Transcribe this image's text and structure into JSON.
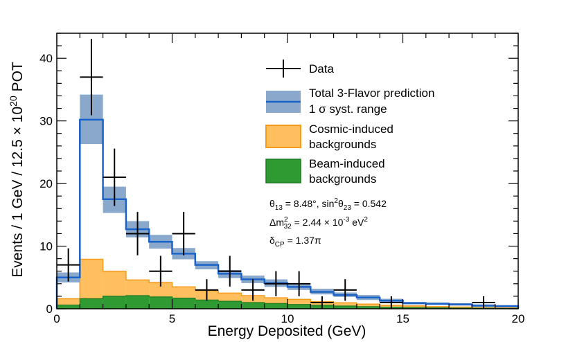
{
  "chart_data": {
    "type": "histogram",
    "title": "",
    "xlabel": "Energy Deposited (GeV)",
    "ylabel": {
      "pre": "Events / 1 GeV / 12.5 × 10",
      "sup": "20",
      "post": " POT"
    },
    "xlim": [
      0,
      20
    ],
    "ylim": [
      0,
      44
    ],
    "x_ticks": [
      0,
      5,
      10,
      15,
      20
    ],
    "y_ticks": [
      0,
      10,
      20,
      30,
      40
    ],
    "bin_edges": [
      0,
      1,
      2,
      3,
      4,
      5,
      6,
      7,
      8,
      9,
      10,
      11,
      12,
      13,
      14,
      15,
      16,
      17,
      18,
      19,
      20
    ],
    "series": [
      {
        "name": "Total 3-Flavor prediction",
        "values": [
          5.0,
          30.2,
          17.5,
          12.7,
          10.7,
          8.8,
          7.0,
          5.6,
          4.7,
          4.1,
          3.5,
          2.7,
          2.2,
          1.8,
          1.3,
          0.9,
          0.8,
          0.7,
          0.5,
          0.4
        ],
        "err_low": [
          4.2,
          26.3,
          15.3,
          11.4,
          9.6,
          7.9,
          6.3,
          4.9,
          4.1,
          3.5,
          3.0,
          2.3,
          1.9,
          1.4,
          1.0,
          0.7,
          0.6,
          0.5,
          0.3,
          0.2
        ],
        "err_high": [
          5.8,
          34.2,
          19.5,
          14.0,
          11.8,
          9.7,
          7.6,
          6.2,
          5.3,
          4.7,
          4.0,
          3.2,
          2.6,
          2.2,
          1.6,
          1.1,
          1.0,
          0.9,
          0.7,
          0.6
        ]
      },
      {
        "name": "Cosmic-induced backgrounds",
        "values": [
          1.0,
          6.3,
          4.0,
          2.5,
          2.3,
          1.8,
          1.5,
          1.3,
          1.1,
          0.9,
          0.8,
          0.6,
          0.5,
          0.4,
          0.3,
          0.25,
          0.2,
          0.15,
          0.1,
          0.1
        ]
      },
      {
        "name": "Beam-induced backgrounds",
        "values": [
          0.6,
          1.6,
          2.0,
          2.1,
          1.9,
          1.7,
          1.4,
          1.2,
          1.0,
          0.85,
          0.7,
          0.55,
          0.45,
          0.35,
          0.25,
          0.2,
          0.15,
          0.12,
          0.08,
          0.05
        ]
      }
    ],
    "data_points": {
      "name": "Data",
      "x": [
        0.5,
        1.5,
        2.5,
        3.5,
        4.5,
        5.5,
        6.5,
        7.5,
        8.5,
        9.5,
        10.5,
        11.5,
        12.5,
        14.5,
        18.5
      ],
      "y": [
        7,
        37,
        21,
        12,
        6,
        12,
        3,
        6,
        3,
        4,
        4,
        1,
        3,
        1,
        1
      ]
    },
    "colors": {
      "band_fill": "#8aa8cc",
      "prediction_line": "#1a63c8",
      "cosmic_fill": "#ffbf5e",
      "cosmic_edge": "#f59a1a",
      "beam_fill": "#2f9a32",
      "beam_edge": "#1e7a22",
      "data_marker": "#000000"
    },
    "legend": {
      "position": "top-right",
      "entries": [
        {
          "label_lines": [
            "Data"
          ]
        },
        {
          "label_lines": [
            "Total 3-Flavor prediction",
            "1 σ syst. range"
          ]
        },
        {
          "label_lines": [
            "Cosmic-induced",
            "backgrounds"
          ]
        },
        {
          "label_lines": [
            "Beam-induced",
            "backgrounds"
          ]
        }
      ]
    },
    "annotations": {
      "line1": {
        "theta13_sym": "θ",
        "theta13_sub": "13",
        "theta13_val": " = 8.48°, sin",
        "sin_sup": "2",
        "theta23_sym": "θ",
        "theta23_sub": "23",
        "theta23_val": " = 0.542"
      },
      "line2": {
        "dm_sym": "Δm",
        "dm_sup": "2",
        "dm_sub": "32",
        "dm_val": " = 2.44 × 10",
        "exp_sup": "-3",
        "unit": " eV",
        "unit_sup": "2"
      },
      "line3": {
        "delta_sym": "δ",
        "delta_sub": "CP",
        "delta_val": " = 1.37π"
      }
    }
  }
}
